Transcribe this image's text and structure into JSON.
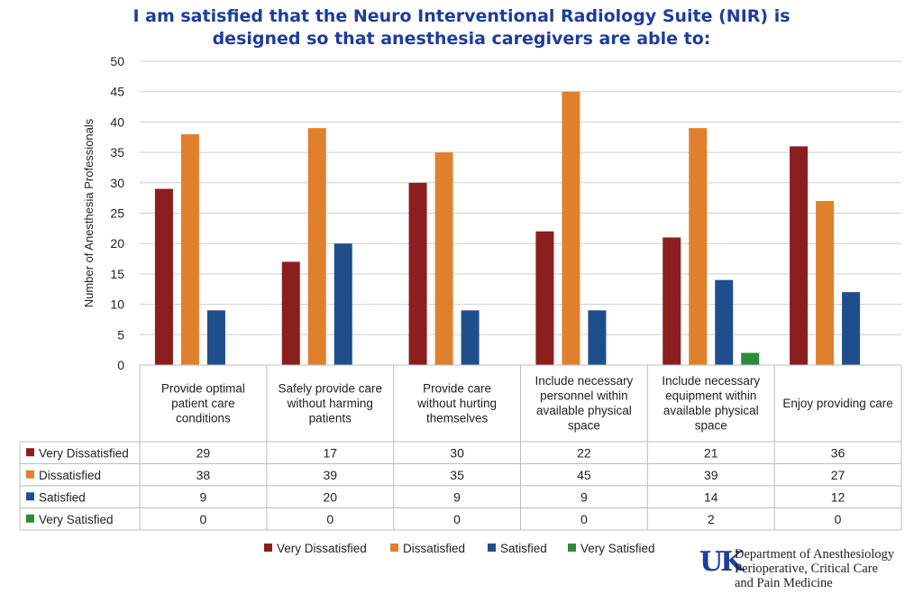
{
  "chart_data": {
    "type": "bar",
    "title_lines": [
      "I am satisfied that the Neuro Interventional Radiology Suite (NIR) is",
      "designed so that anesthesia caregivers are able to:"
    ],
    "ylabel": "Number of Anesthesia Professionals",
    "ylim": [
      0,
      50
    ],
    "yticks": [
      0,
      5,
      10,
      15,
      20,
      25,
      30,
      35,
      40,
      45,
      50
    ],
    "grid": true,
    "categories": [
      [
        "Provide optimal",
        "patient care",
        "conditions"
      ],
      [
        "Safely provide care",
        "without harming",
        "patients"
      ],
      [
        "Provide care",
        "without hurting",
        "themselves"
      ],
      [
        "Include necessary",
        "personnel within",
        "available physical",
        "space"
      ],
      [
        "Include necessary",
        "equipment within",
        "available physical",
        "space"
      ],
      [
        "Enjoy providing care"
      ]
    ],
    "series": [
      {
        "name": "Very Dissatisfied",
        "color": "#8b1e1e",
        "values": [
          29,
          17,
          30,
          22,
          21,
          36
        ]
      },
      {
        "name": "Dissatisfied",
        "color": "#e1802c",
        "values": [
          38,
          39,
          35,
          45,
          39,
          27
        ]
      },
      {
        "name": "Satisfied",
        "color": "#1f4e8c",
        "values": [
          9,
          20,
          9,
          9,
          14,
          12
        ]
      },
      {
        "name": "Very Satisfied",
        "color": "#2e8b3a",
        "values": [
          0,
          0,
          0,
          0,
          2,
          0
        ]
      }
    ],
    "legend_position": "bottom",
    "data_table": true
  },
  "logo": {
    "mark": "UK",
    "lines": [
      "Department of Anesthesiology",
      "Perioperative, Critical Care",
      "and Pain Medicine"
    ]
  }
}
